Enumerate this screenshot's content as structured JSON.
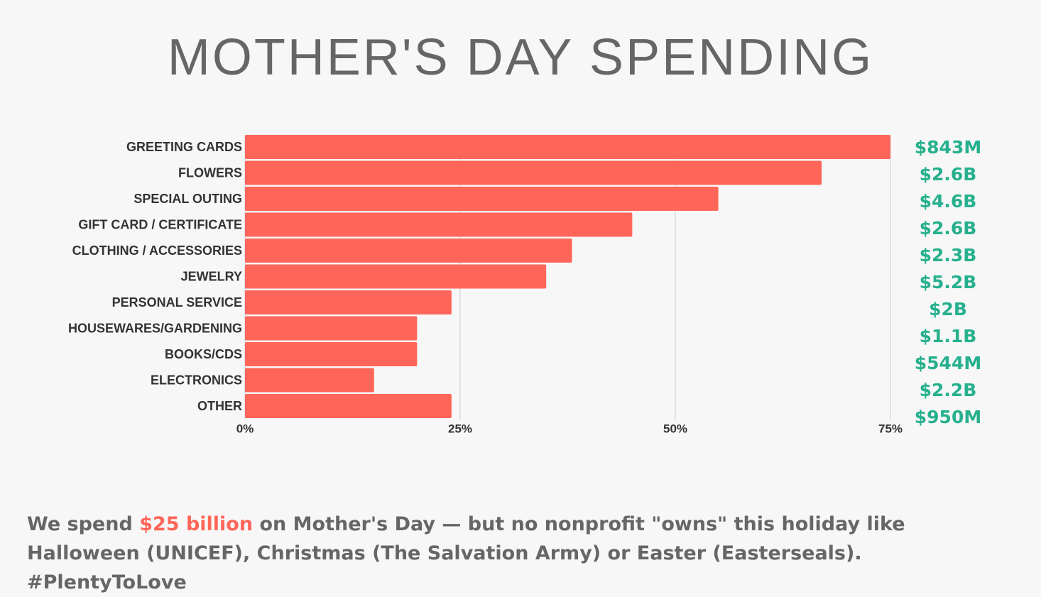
{
  "title": "MOTHER'S DAY SPENDING",
  "colors": {
    "bar": "#ff6659",
    "value_label": "#26b08d",
    "highlight": "#ff6659",
    "text": "#666666"
  },
  "chart_data": {
    "type": "bar",
    "orientation": "horizontal",
    "categories": [
      "GREETING CARDS",
      "FLOWERS",
      "SPECIAL OUTING",
      "GIFT CARD / CERTIFICATE",
      "CLOTHING / ACCESSORIES",
      "JEWELRY",
      "PERSONAL SERVICE",
      "HOUSEWARES/GARDENING",
      "BOOKS/CDS",
      "ELECTRONICS",
      "OTHER"
    ],
    "values": [
      75,
      67,
      55,
      45,
      38,
      35,
      24,
      20,
      20,
      15,
      24
    ],
    "value_labels": [
      "$843M",
      "$2.6B",
      "$4.6B",
      "$2.6B",
      "$2.3B",
      "$5.2B",
      "$2B",
      "$1.1B",
      "$544M",
      "$2.2B",
      "$950M"
    ],
    "xlim": [
      0,
      75
    ],
    "xticks": [
      0,
      25,
      50,
      75
    ],
    "xtick_labels": [
      "0%",
      "25%",
      "50%",
      "75%"
    ],
    "grid": true,
    "unit": "%"
  },
  "footer": {
    "part1": "We spend ",
    "highlight": "$25 billion",
    "part2": " on  Mother's Day — but no nonprofit \"owns\" this holiday like Halloween (UNICEF), Christmas (The Salvation Army) or Easter (Easterseals).  #PlentyToLove"
  }
}
